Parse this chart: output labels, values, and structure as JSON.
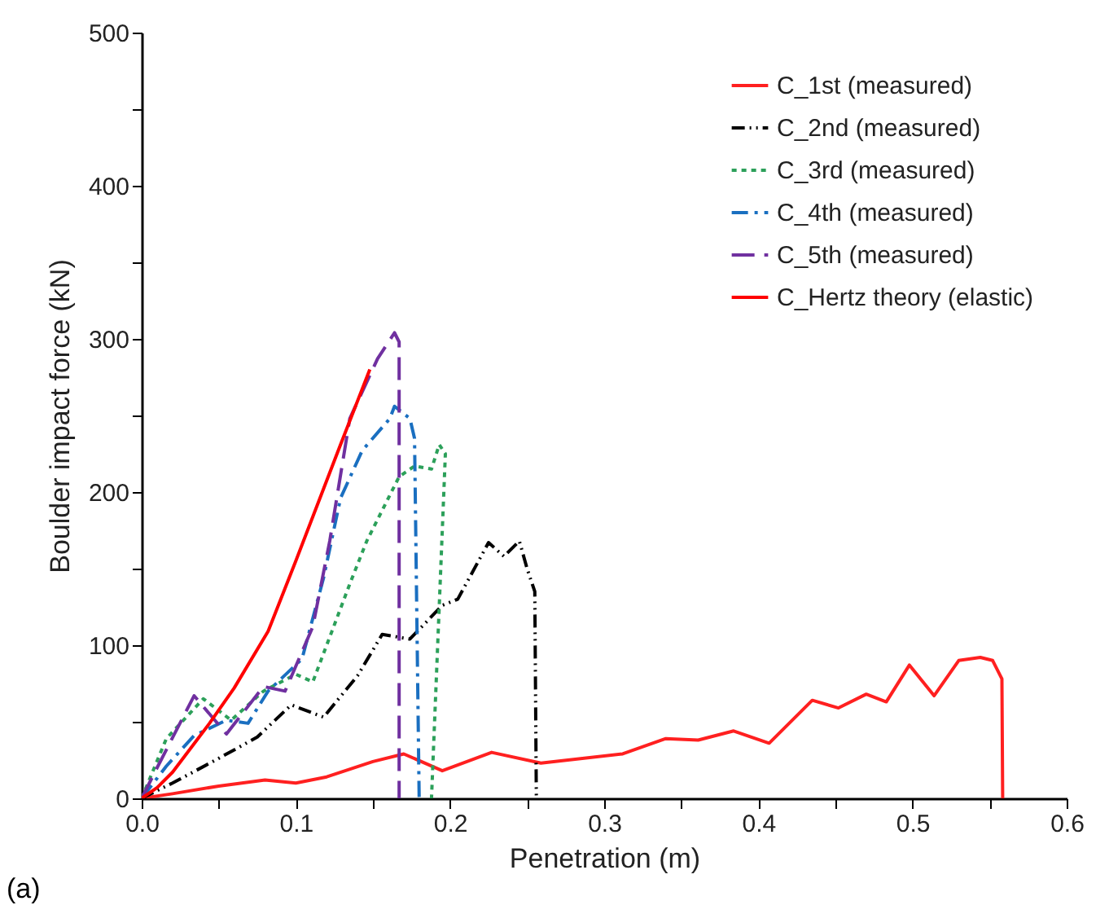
{
  "chart_data": {
    "type": "line",
    "xlabel": "Penetration (m)",
    "ylabel": "Boulder impact force (kN)",
    "annotations": [
      "(a)"
    ],
    "xlim": [
      0,
      0.6
    ],
    "xticks": [
      {
        "value": 0,
        "label": "0.0"
      },
      {
        "value": 0.05,
        "label": null
      },
      {
        "value": 0.1,
        "label": "0.1"
      },
      {
        "value": 0.15,
        "label": null
      },
      {
        "value": 0.2,
        "label": "0.2"
      },
      {
        "value": 0.25,
        "label": null
      },
      {
        "value": 0.3,
        "label": "0.3"
      },
      {
        "value": 0.35,
        "label": null
      },
      {
        "value": 0.4,
        "label": "0.4"
      },
      {
        "value": 0.45,
        "label": null
      },
      {
        "value": 0.5,
        "label": "0.5"
      },
      {
        "value": 0.55,
        "label": null
      },
      {
        "value": 0.6,
        "label": "0.6"
      }
    ],
    "ylim": [
      0,
      500
    ],
    "yticks": [
      0,
      {
        "value": 50,
        "label": null
      },
      100,
      {
        "value": 150,
        "label": null
      },
      200,
      {
        "value": 250,
        "label": null
      },
      300,
      {
        "value": 350,
        "label": null
      },
      400,
      {
        "value": 450,
        "label": null
      },
      500
    ],
    "grid": false,
    "legend": "top right",
    "marker": "none",
    "series": [
      {
        "name": "C_1st  (measured)",
        "color": "#ff2020",
        "line_style": "solid",
        "x": [
          0,
          0.02,
          0.05,
          0.08,
          0.1,
          0.12,
          0.15,
          0.17,
          0.195,
          0.227,
          0.259,
          0.312,
          0.34,
          0.361,
          0.384,
          0.407,
          0.435,
          0.452,
          0.47,
          0.483,
          0.498,
          0.514,
          0.53,
          0.544,
          0.552,
          0.558,
          0.5585
        ],
        "values": [
          0,
          3,
          8,
          12,
          10,
          14,
          24,
          29,
          18,
          30,
          23,
          29,
          39,
          38,
          44,
          36,
          64,
          59,
          68,
          63,
          87,
          67,
          90,
          92,
          90,
          78,
          0
        ]
      },
      {
        "name": "C_2nd (measured)",
        "color": "#000000",
        "line_style": "dashdotdot",
        "x": [
          0,
          0.02,
          0.048,
          0.075,
          0.097,
          0.118,
          0.14,
          0.156,
          0.174,
          0.195,
          0.205,
          0.225,
          0.235,
          0.245,
          0.25,
          0.255,
          0.256
        ],
        "values": [
          0,
          10,
          25,
          40,
          61,
          53,
          80,
          107,
          104,
          126,
          130,
          167,
          158,
          168,
          150,
          135,
          0
        ]
      },
      {
        "name": "C_3rd  (measured)",
        "color": "#2ca05a",
        "line_style": "dotted",
        "x": [
          0,
          0.016,
          0.04,
          0.058,
          0.079,
          0.1,
          0.111,
          0.135,
          0.146,
          0.167,
          0.177,
          0.188,
          0.193,
          0.197,
          0.192,
          0.188
        ],
        "values": [
          0,
          39,
          65,
          51,
          70,
          81,
          76,
          140,
          168,
          210,
          217,
          215,
          231,
          225,
          100,
          0
        ]
      },
      {
        "name": "C_4th  (measured)",
        "color": "#1a6fc0",
        "line_style": "dashdot",
        "x": [
          0,
          0.016,
          0.034,
          0.055,
          0.069,
          0.082,
          0.104,
          0.118,
          0.129,
          0.143,
          0.161,
          0.164,
          0.174,
          0.177,
          0.18
        ],
        "values": [
          0,
          21,
          41,
          51,
          49,
          70,
          91,
          144,
          196,
          227,
          248,
          256,
          248,
          235,
          0
        ]
      },
      {
        "name": "C_5th  (measured)",
        "color": "#7030a0",
        "line_style": "dashed",
        "x": [
          0,
          0.009,
          0.034,
          0.055,
          0.079,
          0.093,
          0.111,
          0.122,
          0.135,
          0.153,
          0.164,
          0.167,
          0.167
        ],
        "values": [
          0,
          18,
          67,
          42,
          73,
          70,
          112,
          168,
          248,
          287,
          304,
          298,
          0
        ]
      },
      {
        "name": "C_Hertz theory (elastic)",
        "color": "#ff0000",
        "line_style": "solid",
        "x": [
          0,
          0.01,
          0.02,
          0.044,
          0.06,
          0.082,
          0.1,
          0.129,
          0.148
        ],
        "values": [
          0,
          7,
          17,
          49,
          72,
          109,
          155,
          231,
          280
        ]
      }
    ]
  }
}
